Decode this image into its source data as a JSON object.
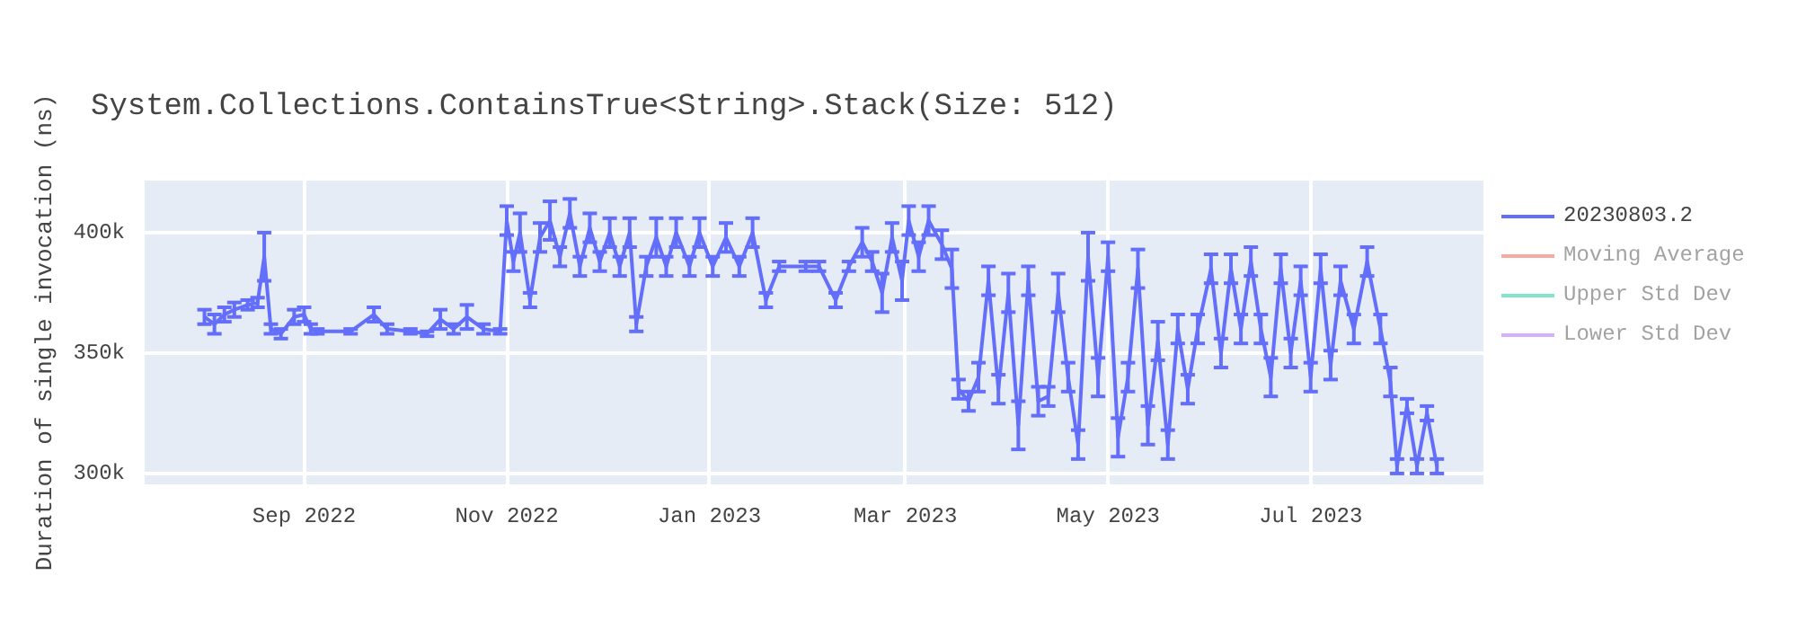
{
  "chart_data": {
    "type": "line",
    "title": "System.Collections.ContainsTrue<String>.Stack(Size: 512)",
    "ylabel": "Duration of single invocation (ns)",
    "x": [
      "2022-08-02",
      "2022-08-05",
      "2022-08-08",
      "2022-08-11",
      "2022-08-15",
      "2022-08-18",
      "2022-08-20",
      "2022-08-22",
      "2022-08-25",
      "2022-08-29",
      "2022-09-01",
      "2022-09-03",
      "2022-09-05",
      "2022-09-15",
      "2022-09-22",
      "2022-09-26",
      "2022-10-03",
      "2022-10-08",
      "2022-10-12",
      "2022-10-16",
      "2022-10-20",
      "2022-10-25",
      "2022-10-30",
      "2022-11-01",
      "2022-11-03",
      "2022-11-05",
      "2022-11-08",
      "2022-11-11",
      "2022-11-14",
      "2022-11-17",
      "2022-11-20",
      "2022-11-23",
      "2022-11-26",
      "2022-11-29",
      "2022-12-02",
      "2022-12-05",
      "2022-12-08",
      "2022-12-10",
      "2022-12-13",
      "2022-12-16",
      "2022-12-19",
      "2022-12-22",
      "2022-12-26",
      "2022-12-29",
      "2023-01-02",
      "2023-01-06",
      "2023-01-10",
      "2023-01-14",
      "2023-01-18",
      "2023-01-22",
      "2023-01-30",
      "2023-02-03",
      "2023-02-08",
      "2023-02-12",
      "2023-02-16",
      "2023-02-19",
      "2023-02-22",
      "2023-02-25",
      "2023-02-28",
      "2023-03-02",
      "2023-03-05",
      "2023-03-08",
      "2023-03-12",
      "2023-03-15",
      "2023-03-17",
      "2023-03-20",
      "2023-03-23",
      "2023-03-26",
      "2023-03-29",
      "2023-04-01",
      "2023-04-04",
      "2023-04-07",
      "2023-04-10",
      "2023-04-13",
      "2023-04-16",
      "2023-04-19",
      "2023-04-22",
      "2023-04-25",
      "2023-04-28",
      "2023-05-01",
      "2023-05-04",
      "2023-05-07",
      "2023-05-10",
      "2023-05-13",
      "2023-05-16",
      "2023-05-19",
      "2023-05-22",
      "2023-05-25",
      "2023-05-28",
      "2023-06-01",
      "2023-06-04",
      "2023-06-07",
      "2023-06-10",
      "2023-06-13",
      "2023-06-16",
      "2023-06-19",
      "2023-06-22",
      "2023-06-25",
      "2023-06-28",
      "2023-07-01",
      "2023-07-04",
      "2023-07-07",
      "2023-07-10",
      "2023-07-14",
      "2023-07-18",
      "2023-07-22",
      "2023-07-25",
      "2023-07-27",
      "2023-07-30",
      "2023-08-02",
      "2023-08-05",
      "2023-08-08"
    ],
    "series": [
      {
        "name": "20230803.2",
        "color": "#636efa",
        "values": [
          365000,
          362000,
          366000,
          368000,
          370000,
          371000,
          390000,
          360000,
          358000,
          365000,
          366000,
          360000,
          359000,
          359000,
          366000,
          360000,
          359000,
          358000,
          364000,
          360000,
          365000,
          360000,
          359000,
          405000,
          388000,
          400000,
          372000,
          398000,
          405000,
          390000,
          408000,
          386000,
          402000,
          388000,
          400000,
          386000,
          400000,
          362000,
          386000,
          398000,
          386000,
          400000,
          386000,
          400000,
          386000,
          398000,
          386000,
          400000,
          372000,
          386000,
          386000,
          386000,
          372000,
          386000,
          396000,
          388000,
          375000,
          398000,
          380000,
          405000,
          390000,
          405000,
          395000,
          385000,
          335000,
          330000,
          340000,
          380000,
          335000,
          375000,
          320000,
          380000,
          330000,
          332000,
          375000,
          340000,
          312000,
          390000,
          340000,
          390000,
          315000,
          340000,
          385000,
          320000,
          355000,
          312000,
          360000,
          335000,
          360000,
          385000,
          350000,
          385000,
          360000,
          388000,
          360000,
          340000,
          385000,
          350000,
          380000,
          340000,
          385000,
          345000,
          380000,
          360000,
          388000,
          360000,
          338000,
          303000,
          328000,
          303000,
          325000,
          303000
        ],
        "errors": [
          3000,
          4000,
          3000,
          3000,
          2000,
          2000,
          10000,
          2000,
          2000,
          3000,
          3000,
          2000,
          1000,
          1000,
          3000,
          2000,
          1000,
          1000,
          4000,
          2000,
          5000,
          2000,
          1000,
          6000,
          4000,
          8000,
          3000,
          6000,
          8000,
          4000,
          6000,
          4000,
          6000,
          4000,
          6000,
          4000,
          6000,
          3000,
          4000,
          8000,
          4000,
          6000,
          4000,
          6000,
          4000,
          6000,
          4000,
          6000,
          3000,
          2000,
          2000,
          2000,
          3000,
          2000,
          6000,
          4000,
          8000,
          6000,
          8000,
          6000,
          6000,
          6000,
          6000,
          8000,
          4000,
          4000,
          6000,
          6000,
          6000,
          8000,
          10000,
          6000,
          6000,
          4000,
          8000,
          6000,
          6000,
          10000,
          8000,
          6000,
          8000,
          6000,
          8000,
          8000,
          8000,
          6000,
          6000,
          6000,
          6000,
          6000,
          6000,
          6000,
          6000,
          6000,
          6000,
          8000,
          6000,
          6000,
          6000,
          6000,
          6000,
          6000,
          6000,
          6000,
          6000,
          6000,
          6000,
          3000,
          3000,
          3000,
          3000,
          3000
        ]
      },
      {
        "name": "Moving Average",
        "color": "#ef553b",
        "values": [
          null,
          null,
          null,
          null,
          null,
          null,
          null,
          null,
          null,
          null,
          null,
          null,
          null,
          null,
          null,
          null,
          null,
          null,
          null,
          null,
          null,
          null,
          null,
          null,
          null,
          null,
          null,
          null,
          null,
          null,
          null,
          null,
          null,
          null,
          null,
          null,
          null,
          null,
          null,
          null,
          null,
          null,
          null,
          null,
          null,
          null,
          null,
          null,
          null,
          null,
          null,
          null,
          null,
          null,
          null,
          null,
          null,
          null,
          null,
          null,
          null,
          null,
          null,
          null,
          null,
          null,
          null,
          null,
          null,
          null,
          null,
          null,
          null,
          null,
          null,
          null,
          null,
          null,
          null,
          null,
          null,
          null,
          null,
          null,
          null,
          null,
          null,
          null,
          null,
          null,
          null,
          null,
          null,
          null,
          null,
          null,
          null,
          null,
          null,
          null,
          null,
          null,
          null,
          null,
          null,
          null,
          null,
          null,
          null,
          null,
          null,
          null
        ]
      },
      {
        "name": "Upper Std Dev",
        "color": "#00cc96",
        "values": [
          null,
          null,
          null,
          null,
          null,
          null,
          null,
          null,
          null,
          null,
          null,
          null,
          null,
          null,
          null,
          null,
          null,
          null,
          null,
          null,
          null,
          null,
          null,
          null,
          null,
          null,
          null,
          null,
          null,
          null,
          null,
          null,
          null,
          null,
          null,
          null,
          null,
          null,
          null,
          null,
          null,
          null,
          null,
          null,
          null,
          null,
          null,
          null,
          null,
          null,
          null,
          null,
          null,
          null,
          null,
          null,
          null,
          null,
          null,
          null,
          null,
          null,
          null,
          null,
          null,
          null,
          null,
          null,
          null,
          null,
          null,
          null,
          null,
          null,
          null,
          null,
          null,
          null,
          null,
          null,
          null,
          null,
          null,
          null,
          null,
          null,
          null,
          null,
          null,
          null,
          null,
          null,
          null,
          null,
          null,
          null,
          null,
          null,
          null,
          null,
          null,
          null,
          null,
          null,
          null,
          null,
          null,
          null,
          null,
          null,
          null,
          null
        ]
      },
      {
        "name": "Lower Std Dev",
        "color": "#ab63fa",
        "values": [
          null,
          null,
          null,
          null,
          null,
          null,
          null,
          null,
          null,
          null,
          null,
          null,
          null,
          null,
          null,
          null,
          null,
          null,
          null,
          null,
          null,
          null,
          null,
          null,
          null,
          null,
          null,
          null,
          null,
          null,
          null,
          null,
          null,
          null,
          null,
          null,
          null,
          null,
          null,
          null,
          null,
          null,
          null,
          null,
          null,
          null,
          null,
          null,
          null,
          null,
          null,
          null,
          null,
          null,
          null,
          null,
          null,
          null,
          null,
          null,
          null,
          null,
          null,
          null,
          null,
          null,
          null,
          null,
          null,
          null,
          null,
          null,
          null,
          null,
          null,
          null,
          null,
          null,
          null,
          null,
          null,
          null,
          null,
          null,
          null,
          null,
          null,
          null,
          null,
          null,
          null,
          null,
          null,
          null,
          null,
          null,
          null,
          null,
          null,
          null,
          null,
          null,
          null,
          null,
          null,
          null,
          null,
          null,
          null,
          null,
          null,
          null
        ]
      }
    ],
    "xlim": [
      "2022-07-15",
      "2023-08-22"
    ],
    "xticks": [
      {
        "value": "2022-09-01",
        "label": "Sep 2022"
      },
      {
        "value": "2022-11-01",
        "label": "Nov 2022"
      },
      {
        "value": "2023-01-01",
        "label": "Jan 2023"
      },
      {
        "value": "2023-03-01",
        "label": "Mar 2023"
      },
      {
        "value": "2023-05-01",
        "label": "May 2023"
      },
      {
        "value": "2023-07-01",
        "label": "Jul 2023"
      }
    ],
    "ylim": [
      295500,
      421600
    ],
    "yticks": [
      {
        "value": 300000,
        "label": "300k"
      },
      {
        "value": 350000,
        "label": "350k"
      },
      {
        "value": 400000,
        "label": "400k"
      }
    ],
    "grid": true,
    "legend": "right",
    "marker": "none",
    "line_style": "solid"
  }
}
